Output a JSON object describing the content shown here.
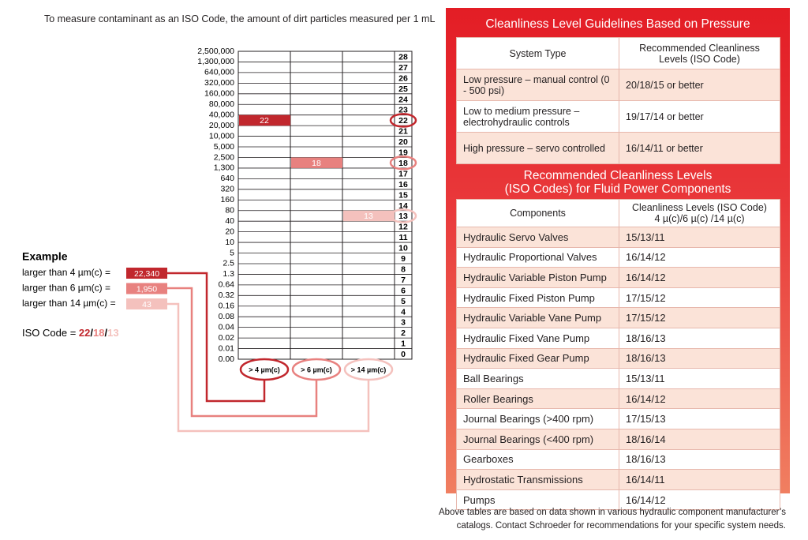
{
  "intro": "To measure contaminant as an ISO Code, the amount of dirt particles measured per 1 mL",
  "chart": {
    "counts": [
      "2,500,000",
      "1,300,000",
      "640,000",
      "320,000",
      "160,000",
      "80,000",
      "40,000",
      "20,000",
      "10,000",
      "5,000",
      "2,500",
      "1,300",
      "640",
      "320",
      "160",
      "80",
      "40",
      "20",
      "10",
      "5",
      "2.5",
      "1.3",
      "0.64",
      "0.32",
      "0.16",
      "0.08",
      "0.04",
      "0.02",
      "0.01",
      "0.00"
    ],
    "codes": [
      28,
      27,
      26,
      25,
      24,
      23,
      22,
      21,
      20,
      19,
      18,
      17,
      16,
      15,
      14,
      13,
      12,
      11,
      10,
      9,
      8,
      7,
      6,
      5,
      4,
      3,
      2,
      1,
      0
    ],
    "bars": [
      22,
      18,
      13
    ],
    "columns": [
      "> 4 µm(c)",
      "> 6 µm(c)",
      "> 14 µm(c)"
    ]
  },
  "example": {
    "title": "Example",
    "rows": [
      {
        "label": "larger than 4 µm(c) =",
        "value": "22,340"
      },
      {
        "label": "larger than 6 µm(c) =",
        "value": "1,950"
      },
      {
        "label": "larger than 14 µm(c) =",
        "value": "43"
      }
    ]
  },
  "iso_code": {
    "label": "ISO Code =",
    "parts": [
      "22",
      "18",
      "13"
    ],
    "separator": "/"
  },
  "pressure_table": {
    "title": "Cleanliness Level Guidelines Based on Pressure",
    "headers": [
      "System Type",
      "Recommended Cleanliness Levels (ISO Code)"
    ],
    "rows": [
      [
        "Low pressure – manual control (0 - 500 psi)",
        "20/18/15 or better"
      ],
      [
        "Low to medium pressure – electrohydraulic controls",
        "19/17/14 or better"
      ],
      [
        "High pressure – servo controlled",
        "16/14/11 or better"
      ]
    ]
  },
  "components_table": {
    "title": [
      "Recommended Cleanliness Levels",
      "(ISO Codes) for Fluid Power Components"
    ],
    "headers": [
      [
        "Components"
      ],
      [
        "Cleanliness Levels (ISO Code)",
        "4 µ(c)/6 µ(c) /14 µ(c)"
      ]
    ],
    "rows": [
      [
        "Hydraulic Servo Valves",
        "15/13/11"
      ],
      [
        "Hydraulic Proportional Valves",
        "16/14/12"
      ],
      [
        "Hydraulic Variable Piston Pump",
        "16/14/12"
      ],
      [
        "Hydraulic Fixed Piston Pump",
        "17/15/12"
      ],
      [
        "Hydraulic Variable Vane Pump",
        "17/15/12"
      ],
      [
        "Hydraulic Fixed Vane Pump",
        "18/16/13"
      ],
      [
        "Hydraulic Fixed Gear Pump",
        "18/16/13"
      ],
      [
        "Ball Bearings",
        "15/13/11"
      ],
      [
        "Roller Bearings",
        "16/14/12"
      ],
      [
        "Journal Bearings (>400 rpm)",
        "17/15/13"
      ],
      [
        "Journal Bearings (<400 rpm)",
        "18/16/14"
      ],
      [
        "Gearboxes",
        "18/16/13"
      ],
      [
        "Hydrostatic Transmissions",
        "16/14/11"
      ],
      [
        "Pumps",
        "16/14/12"
      ]
    ]
  },
  "footnote": [
    "Above tables are based on data shown in various hydraulic component manufacturer’s",
    "catalogs. Contact Schroeder for recommendations for your specific system needs."
  ]
}
